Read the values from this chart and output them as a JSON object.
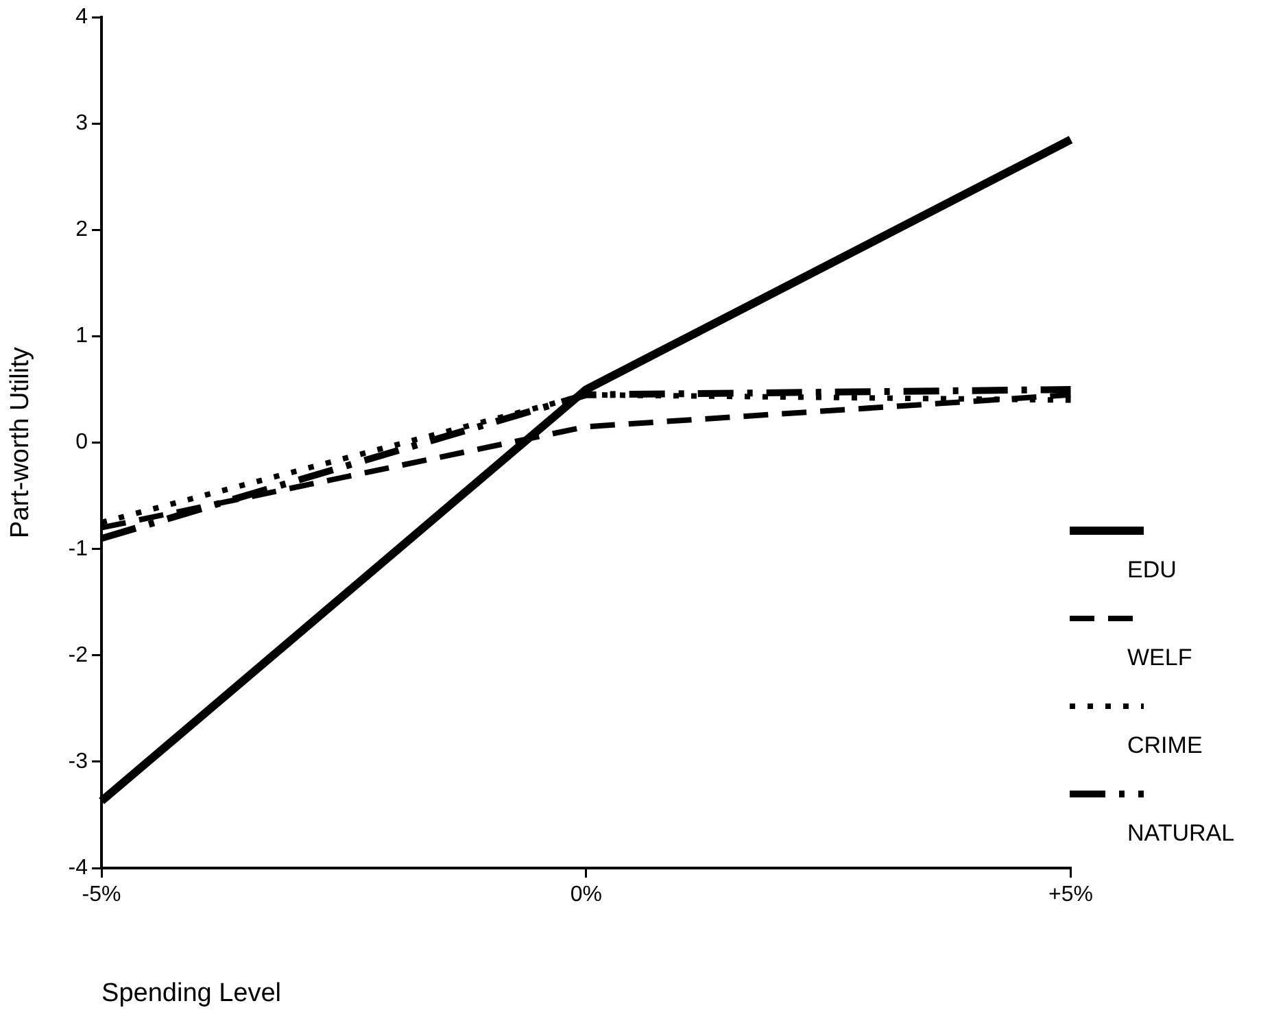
{
  "chart_data": {
    "type": "line",
    "xlabel": "Spending Level",
    "ylabel": "Part-worth Utility",
    "categories": [
      "-5%",
      "0%",
      "+5%"
    ],
    "ylim": [
      -4,
      4
    ],
    "yticks": [
      -4,
      -3,
      -2,
      -1,
      0,
      1,
      2,
      3,
      4
    ],
    "grid": false,
    "legend": "right",
    "marker": "none",
    "series": [
      {
        "name": "EDU",
        "color": "#000000",
        "line_style": "solid",
        "values": [
          -3.37,
          0.5,
          2.85
        ]
      },
      {
        "name": "WELF",
        "color": "#000000",
        "line_style": "dashed",
        "values": [
          -0.8,
          0.15,
          0.45
        ]
      },
      {
        "name": "CRIME",
        "color": "#000000",
        "line_style": "dotted",
        "values": [
          -0.75,
          0.45,
          0.4
        ]
      },
      {
        "name": "NATURAL",
        "color": "#000000",
        "line_style": "dashdot",
        "values": [
          -0.9,
          0.45,
          0.5
        ]
      }
    ]
  }
}
